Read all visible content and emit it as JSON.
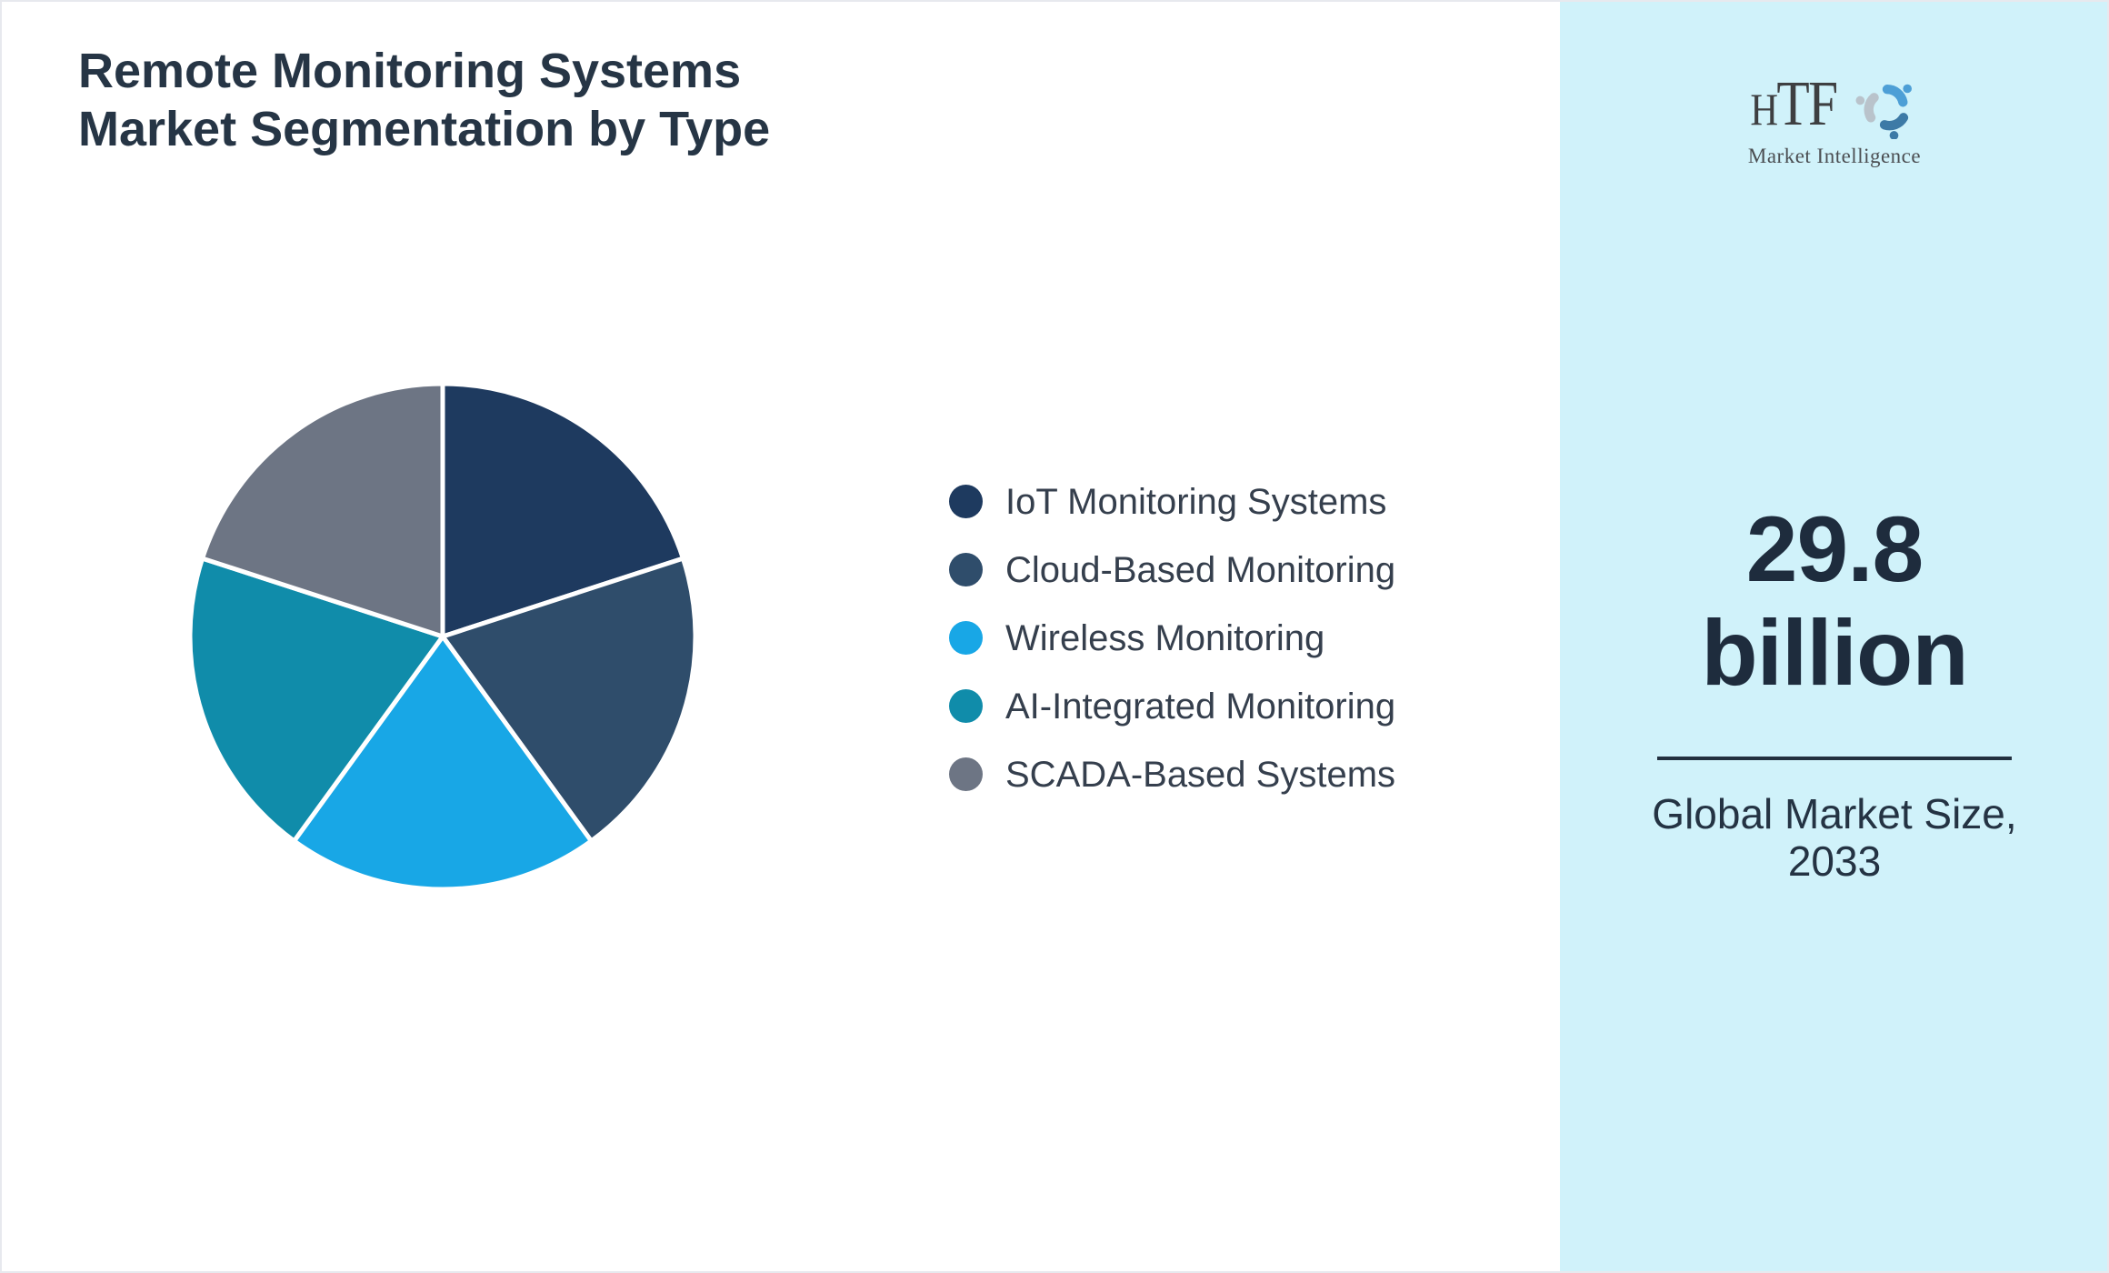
{
  "header": {
    "title": "Remote Monitoring Systems\nMarket Segmentation by Type"
  },
  "chart_data": {
    "type": "pie",
    "title": "Remote Monitoring Systems Market Segmentation by Type",
    "categories": [
      "IoT Monitoring Systems",
      "Cloud-Based Monitoring",
      "Wireless Monitoring",
      "AI-Integrated Monitoring",
      "SCADA-Based Systems"
    ],
    "values": [
      20,
      20,
      20,
      20,
      20
    ],
    "values_note": "slices carry no data labels; all five arcs measure ~72 deg, i.e. ~20% each (estimated)",
    "colors": [
      "#1e3a5f",
      "#2f4d6b",
      "#18a7e6",
      "#108caa",
      "#6d7584"
    ],
    "start_angle": "12 o'clock, clockwise",
    "slice_border_color": "#ffffff",
    "legend_position": "right-of-chart",
    "radius_px": 278
  },
  "sidebar": {
    "background": "#d0f2fa",
    "logo": {
      "brand": "HTF",
      "tagline": "Market Intelligence",
      "swirl_colors": [
        "#4d9fd6",
        "#3d7aa6",
        "#b9c3cb"
      ]
    },
    "market_size": {
      "value": "29.8\nbillion",
      "caption": "Global Market Size,\n2033"
    }
  }
}
